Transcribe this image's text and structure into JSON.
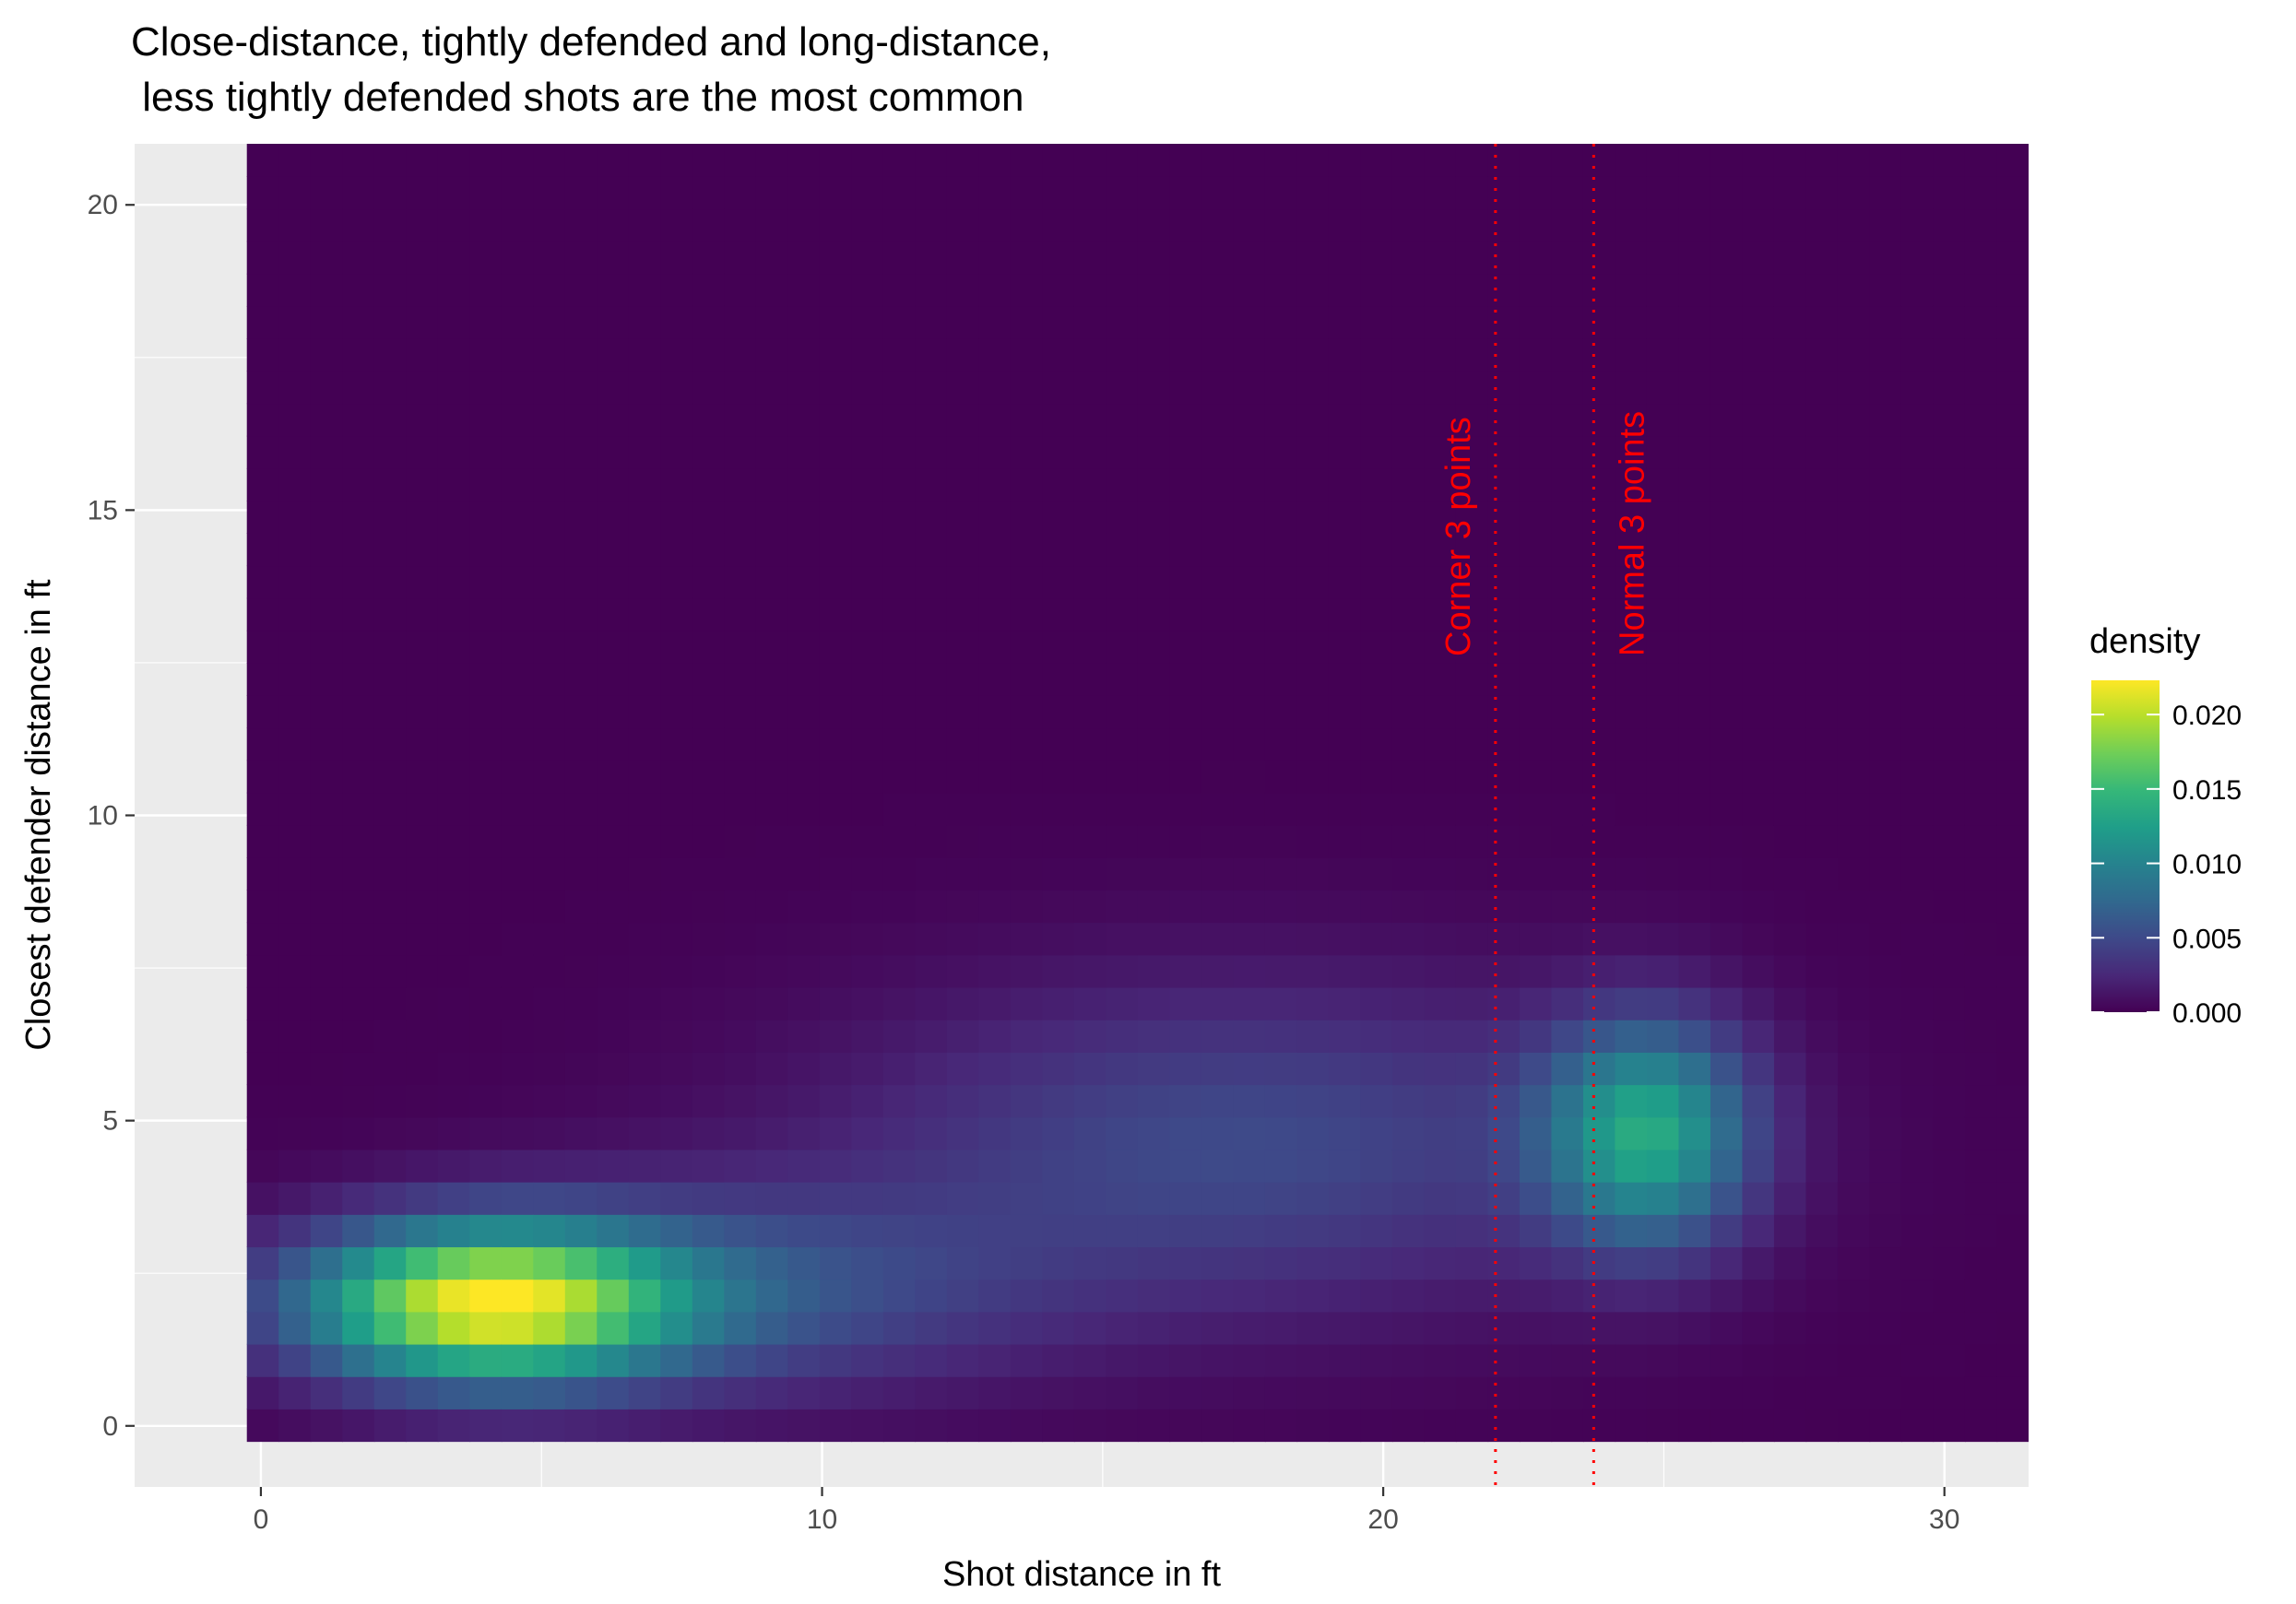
{
  "chart_data": {
    "type": "heatmap",
    "title_lines": [
      "Close-distance, tightly defended and long-distance,",
      " less tightly defended shots are the most common"
    ],
    "xlabel": "Shot distance in ft",
    "ylabel": "Closest defender distance in ft",
    "x_ticks": [
      0,
      10,
      20,
      30
    ],
    "y_ticks": [
      0,
      5,
      10,
      15,
      20
    ],
    "xlim": [
      -2.25,
      31.5
    ],
    "ylim": [
      -1.0,
      21.0
    ],
    "data_extent": {
      "x": [
        -0.25,
        31.5
      ],
      "y": [
        -0.25,
        21.0
      ]
    },
    "grid": true,
    "legend": {
      "title": "density",
      "position": "right",
      "ticks": [
        "0.000",
        "0.005",
        "0.010",
        "0.015",
        "0.020"
      ],
      "tick_values": [
        0.0,
        0.005,
        0.01,
        0.015,
        0.02
      ],
      "range": [
        0.0,
        0.0223
      ],
      "colormap": "viridis"
    },
    "density_components": [
      {
        "center_x": 4.0,
        "center_y": 2.0,
        "sd_x": 2.3,
        "sd_y": 0.9,
        "peak": 0.0195
      },
      {
        "center_x": 24.7,
        "center_y": 4.8,
        "sd_x": 1.3,
        "sd_y": 1.3,
        "peak": 0.012
      },
      {
        "center_x": 17.5,
        "center_y": 4.6,
        "sd_x": 5.0,
        "sd_y": 1.9,
        "peak": 0.005
      },
      {
        "center_x": 8.0,
        "center_y": 2.2,
        "sd_x": 4.0,
        "sd_y": 1.2,
        "peak": 0.0055
      }
    ],
    "reference_lines": [
      {
        "x": 22,
        "label": "Corner 3 points",
        "color": "#ff0000",
        "style": "dotted"
      },
      {
        "x": 23.75,
        "label": "Normal 3 points",
        "color": "#ff0000",
        "style": "dotted"
      }
    ]
  }
}
